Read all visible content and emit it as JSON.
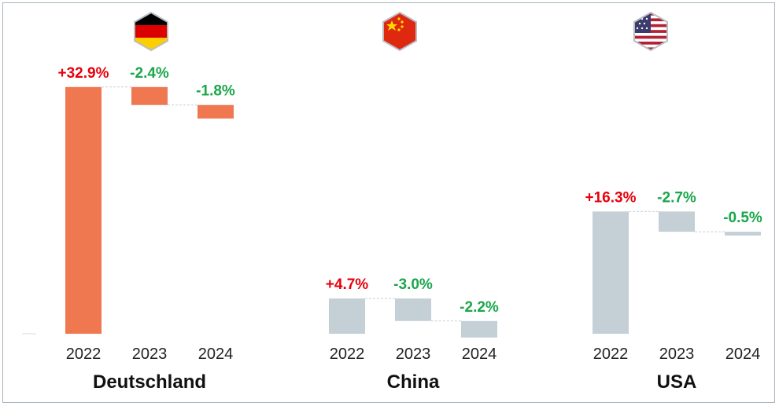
{
  "colors": {
    "germany_bar": "#f07850",
    "other_bar": "#c4cfd6",
    "increase_label": "#e8000b",
    "decrease_label": "#1aa64a",
    "connector": "#c9d0d6"
  },
  "chart_data": [
    {
      "type": "waterfall",
      "name": "Deutschland",
      "flag_icon": "germany-flag-icon",
      "categories": [
        "2022",
        "2023",
        "2024"
      ],
      "values": [
        32.9,
        -2.4,
        -1.8
      ],
      "labels": [
        "+32.9%",
        "-2.4%",
        "-1.8%"
      ],
      "ylim": [
        0,
        34
      ]
    },
    {
      "type": "waterfall",
      "name": "China",
      "flag_icon": "china-flag-icon",
      "categories": [
        "2022",
        "2023",
        "2024"
      ],
      "values": [
        4.7,
        -3.0,
        -2.2
      ],
      "labels": [
        "+4.7%",
        "-3.0%",
        "-2.2%"
      ],
      "ylim": [
        0,
        34
      ]
    },
    {
      "type": "waterfall",
      "name": "USA",
      "flag_icon": "usa-flag-icon",
      "categories": [
        "2022",
        "2023",
        "2024"
      ],
      "values": [
        16.3,
        -2.7,
        -0.5
      ],
      "labels": [
        "+16.3%",
        "-2.7%",
        "-0.5%"
      ],
      "ylim": [
        0,
        34
      ]
    }
  ]
}
